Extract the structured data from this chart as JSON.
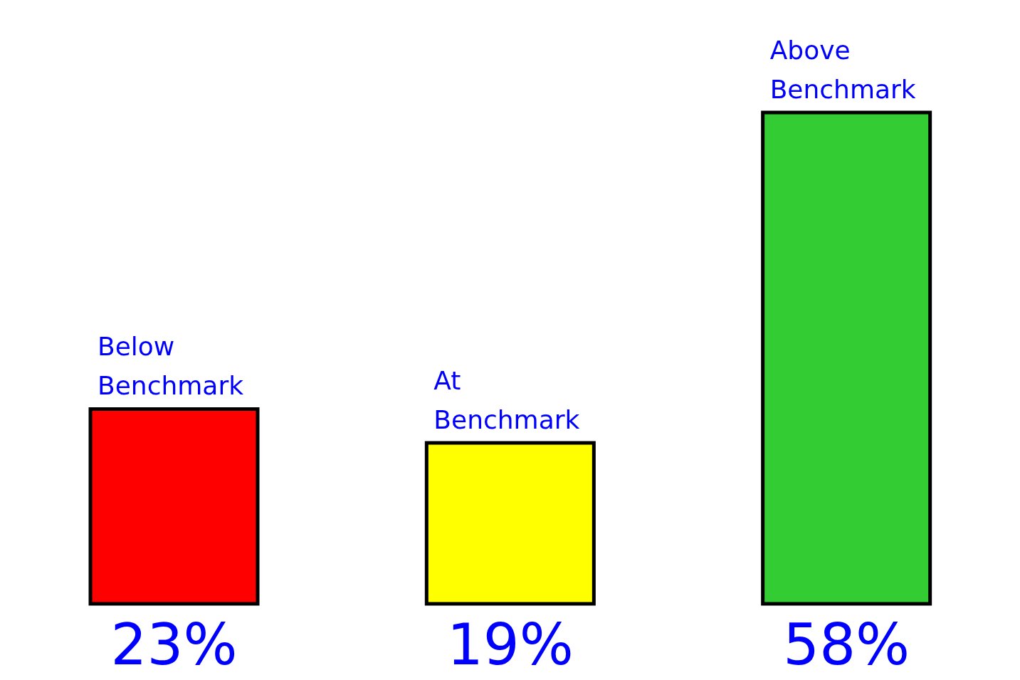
{
  "chart_data": {
    "type": "bar",
    "categories": [
      "Below Benchmark",
      "At Benchmark",
      "Above Benchmark"
    ],
    "values": [
      23,
      19,
      58
    ],
    "colors": [
      "#ff0000",
      "#ffff00",
      "#33cc33"
    ],
    "value_labels": [
      "23%",
      "19%",
      "58%"
    ]
  }
}
